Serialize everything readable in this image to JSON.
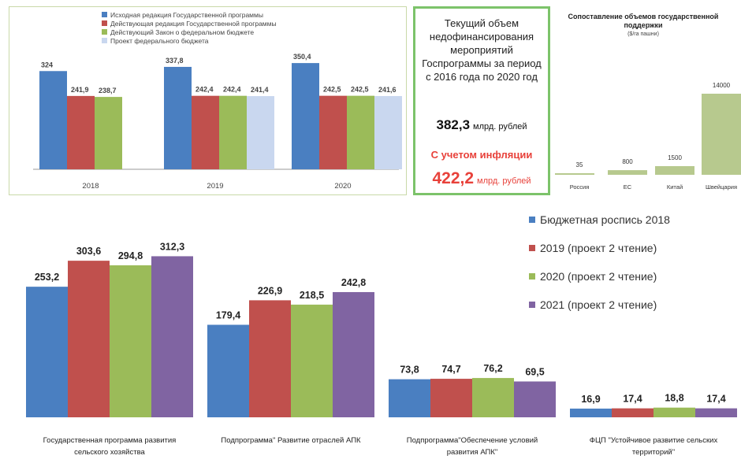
{
  "colors": {
    "blue": "#4a7fc1",
    "red": "#c0504d",
    "green": "#9bbb59",
    "light": "#c9d7ef",
    "purple": "#8064a2",
    "support": "#b7c98e",
    "accent": "#e8413a"
  },
  "chart_data": [
    {
      "type": "bar",
      "categories": [
        "2018",
        "2019",
        "2020"
      ],
      "series": [
        {
          "name": "Исходная редакция Государственной программы",
          "values": [
            324,
            337.8,
            350.4
          ],
          "labels": [
            "324",
            "337,8",
            "350,4"
          ]
        },
        {
          "name": "Действующая редакция Государственной программы",
          "values": [
            241.9,
            242.4,
            242.5
          ],
          "labels": [
            "241,9",
            "242,4",
            "242,5"
          ]
        },
        {
          "name": "Действующий Закон о федеральном бюджете",
          "values": [
            238.7,
            242.4,
            242.5
          ],
          "labels": [
            "238,7",
            "242,4",
            "242,5"
          ]
        },
        {
          "name": "Проект федерального бюджета",
          "values": [
            null,
            241.4,
            241.6
          ],
          "labels": [
            "",
            "241,4",
            "241,6"
          ]
        }
      ],
      "ylim": [
        0,
        400
      ],
      "legend": "top-left"
    },
    {
      "type": "bar",
      "title": "Сопоставление объемов государственной поддержки",
      "subtitle": "($/га пашни)",
      "categories": [
        "Россия",
        "ЕС",
        "Китай",
        "Швейцария"
      ],
      "values": [
        35,
        800,
        1500,
        14000
      ],
      "labels": [
        "35",
        "800",
        "1500",
        "14000"
      ]
    },
    {
      "type": "bar",
      "categories": [
        "Государственная программа развития сельского хозяйства",
        "Подпрограмма\" Развитие отраслей АПК",
        "Подпрограмма\"Обеспечение условий развития АПК\"",
        "ФЦП \"Устойчивое развитие сельских территорий\""
      ],
      "category_lines": [
        [
          "Государственная программа развития",
          "сельского хозяйства"
        ],
        [
          "Подпрограмма\" Развитие отраслей АПК"
        ],
        [
          "Подпрограмма\"Обеспечение условий",
          "развития АПК\""
        ],
        [
          "ФЦП \"Устойчивое развитие сельских",
          "территорий\""
        ]
      ],
      "series": [
        {
          "name": "Бюджетная роспись 2018",
          "values": [
            253.2,
            179.4,
            73.8,
            16.9
          ],
          "labels": [
            "253,2",
            "179,4",
            "73,8",
            "16,9"
          ]
        },
        {
          "name": "2019 (проект 2 чтение)",
          "values": [
            303.6,
            226.9,
            74.7,
            17.4
          ],
          "labels": [
            "303,6",
            "226,9",
            "74,7",
            "17,4"
          ]
        },
        {
          "name": "2020 (проект 2 чтение)",
          "values": [
            294.8,
            218.5,
            76.2,
            18.8
          ],
          "labels": [
            "294,8",
            "218,5",
            "76,2",
            "18,8"
          ]
        },
        {
          "name": "2021 (проект 2 чтение)",
          "values": [
            312.3,
            242.8,
            69.5,
            17.4
          ],
          "labels": [
            "312,3",
            "242,8",
            "69,5",
            "17,4"
          ]
        }
      ],
      "legend": "right"
    }
  ],
  "info": {
    "title": "Текущий объем недофинансирования мероприятий Госпрограммы за период с 2016 года по 2020 год",
    "value": "382,3",
    "unit": "млрд. рублей",
    "inflation_label": "С учетом инфляции",
    "value_infl": "422,2",
    "unit_infl": "млрд. рублей"
  }
}
